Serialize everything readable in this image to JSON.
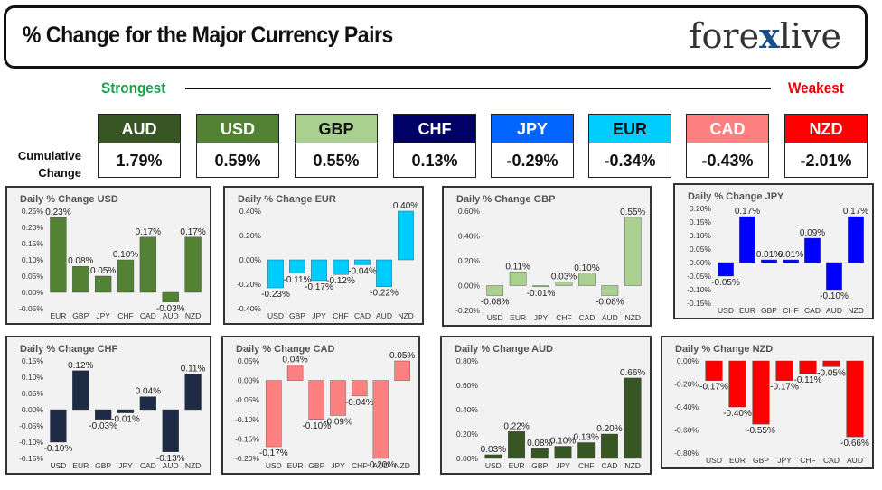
{
  "header": {
    "title": "% Change for the Major Currency Pairs",
    "logo_left": "fore",
    "logo_x": "x",
    "logo_right": "live",
    "strongest_label": "Strongest",
    "weakest_label": "Weakest"
  },
  "summary": {
    "row_label": "Cumulative Change",
    "currencies": [
      {
        "code": "AUD",
        "value": "1.79%",
        "bg": "#375623",
        "fg": "#ffffff"
      },
      {
        "code": "USD",
        "value": "0.59%",
        "bg": "#548235",
        "fg": "#ffffff"
      },
      {
        "code": "GBP",
        "value": "0.55%",
        "bg": "#a9d08e",
        "fg": "#111111"
      },
      {
        "code": "CHF",
        "value": "0.13%",
        "bg": "#000066",
        "fg": "#ffffff"
      },
      {
        "code": "JPY",
        "value": "-0.29%",
        "bg": "#0066ff",
        "fg": "#ffffff"
      },
      {
        "code": "EUR",
        "value": "-0.34%",
        "bg": "#00ccff",
        "fg": "#111111"
      },
      {
        "code": "CAD",
        "value": "-0.43%",
        "bg": "#ff8080",
        "fg": "#ffffff"
      },
      {
        "code": "NZD",
        "value": "-2.01%",
        "bg": "#ff0000",
        "fg": "#ffffff"
      }
    ]
  },
  "chart_data": [
    {
      "type": "bar",
      "title": "Daily % Change USD",
      "categories": [
        "EUR",
        "GBP",
        "JPY",
        "CHF",
        "CAD",
        "AUD",
        "NZD"
      ],
      "values": [
        0.23,
        0.08,
        0.05,
        0.1,
        0.17,
        -0.03,
        0.17
      ],
      "labels": [
        "0.23%",
        "0.08%",
        "0.05%",
        "0.10%",
        "0.17%",
        "-0.03%",
        "0.17%"
      ],
      "ylim": [
        -0.05,
        0.25
      ],
      "ticks": [
        0.25,
        0.2,
        0.15,
        0.1,
        0.05,
        0.0,
        -0.05
      ],
      "tick_labels": [
        "0.25%",
        "0.20%",
        "0.15%",
        "0.10%",
        "0.05%",
        "0.00%",
        "-0.05%"
      ],
      "color": "#548235"
    },
    {
      "type": "bar",
      "title": "Daily % Change EUR",
      "categories": [
        "USD",
        "GBP",
        "JPY",
        "CHF",
        "CAD",
        "AUD",
        "NZD"
      ],
      "values": [
        -0.23,
        -0.11,
        -0.17,
        -0.12,
        -0.04,
        -0.22,
        0.4
      ],
      "labels": [
        "-0.23%",
        "-0.11%",
        "-0.17%",
        "-0.12%",
        "-0.04%",
        "-0.22%",
        "0.40%"
      ],
      "ylim": [
        -0.4,
        0.4
      ],
      "ticks": [
        0.4,
        0.2,
        0.0,
        -0.2,
        -0.4
      ],
      "tick_labels": [
        "0.40%",
        "0.20%",
        "0.00%",
        "-0.20%",
        "-0.40%"
      ],
      "color": "#00ccff"
    },
    {
      "type": "bar",
      "title": "Daily % Change GBP",
      "categories": [
        "USD",
        "EUR",
        "JPY",
        "CHF",
        "CAD",
        "AUD",
        "NZD"
      ],
      "values": [
        -0.08,
        0.11,
        -0.01,
        0.03,
        0.1,
        -0.08,
        0.55
      ],
      "labels": [
        "-0.08%",
        "0.11%",
        "-0.01%",
        "0.03%",
        "0.10%",
        "-0.08%",
        "0.55%"
      ],
      "ylim": [
        -0.2,
        0.6
      ],
      "ticks": [
        0.6,
        0.4,
        0.2,
        0.0,
        -0.2
      ],
      "tick_labels": [
        "0.60%",
        "0.40%",
        "0.20%",
        "0.00%",
        "-0.20%"
      ],
      "color": "#a9d08e"
    },
    {
      "type": "bar",
      "title": "Daily % Change JPY",
      "categories": [
        "USD",
        "EUR",
        "GBP",
        "CHF",
        "CAD",
        "AUD",
        "NZD"
      ],
      "values": [
        -0.05,
        0.17,
        0.01,
        0.01,
        0.09,
        -0.1,
        0.17
      ],
      "labels": [
        "-0.05%",
        "0.17%",
        "0.01%",
        "0.01%",
        "0.09%",
        "-0.10%",
        "0.17%"
      ],
      "ylim": [
        -0.15,
        0.2
      ],
      "ticks": [
        0.2,
        0.15,
        0.1,
        0.05,
        0.0,
        -0.05,
        -0.1,
        -0.15
      ],
      "tick_labels": [
        "0.20%",
        "0.15%",
        "0.10%",
        "0.05%",
        "0.00%",
        "-0.05%",
        "-0.10%",
        "-0.15%"
      ],
      "color": "#0000ff"
    },
    {
      "type": "bar",
      "title": "Daily % Change CHF",
      "categories": [
        "USD",
        "EUR",
        "GBP",
        "JPY",
        "CAD",
        "AUD",
        "NZD"
      ],
      "values": [
        -0.1,
        0.12,
        -0.03,
        -0.01,
        0.04,
        -0.13,
        0.11
      ],
      "labels": [
        "-0.10%",
        "0.12%",
        "-0.03%",
        "-0.01%",
        "0.04%",
        "-0.13%",
        "0.11%"
      ],
      "ylim": [
        -0.15,
        0.15
      ],
      "ticks": [
        0.15,
        0.1,
        0.05,
        0.0,
        -0.05,
        -0.1,
        -0.15
      ],
      "tick_labels": [
        "0.15%",
        "0.10%",
        "0.05%",
        "0.00%",
        "-0.05%",
        "-0.10%",
        "-0.15%"
      ],
      "color": "#1f2a44"
    },
    {
      "type": "bar",
      "title": "Daily % Change CAD",
      "categories": [
        "USD",
        "EUR",
        "GBP",
        "JPY",
        "CHF",
        "AUD",
        "NZD"
      ],
      "values": [
        -0.17,
        0.04,
        -0.1,
        -0.09,
        -0.04,
        -0.2,
        0.05
      ],
      "labels": [
        "-0.17%",
        "0.04%",
        "-0.10%",
        "-0.09%",
        "-0.04%",
        "-0.20%",
        "0.05%"
      ],
      "ylim": [
        -0.2,
        0.05
      ],
      "ticks": [
        0.05,
        0.0,
        -0.05,
        -0.1,
        -0.15,
        -0.2
      ],
      "tick_labels": [
        "0.05%",
        "0.00%",
        "-0.05%",
        "-0.10%",
        "-0.15%",
        "-0.20%"
      ],
      "color": "#ff8080"
    },
    {
      "type": "bar",
      "title": "Daily % Change AUD",
      "categories": [
        "USD",
        "EUR",
        "GBP",
        "JPY",
        "CHF",
        "CAD",
        "NZD"
      ],
      "values": [
        0.03,
        0.22,
        0.08,
        0.1,
        0.13,
        0.2,
        0.66
      ],
      "labels": [
        "0.03%",
        "0.22%",
        "0.08%",
        "0.10%",
        "0.13%",
        "0.20%",
        "0.66%"
      ],
      "ylim": [
        0.0,
        0.8
      ],
      "ticks": [
        0.8,
        0.6,
        0.4,
        0.2,
        0.0
      ],
      "tick_labels": [
        "0.80%",
        "0.60%",
        "0.40%",
        "0.20%",
        "0.00%"
      ],
      "color": "#375623"
    },
    {
      "type": "bar",
      "title": "Daily % Change NZD",
      "categories": [
        "USD",
        "EUR",
        "GBP",
        "JPY",
        "CHF",
        "CAD",
        "AUD"
      ],
      "values": [
        -0.17,
        -0.4,
        -0.55,
        -0.17,
        -0.11,
        -0.05,
        -0.66
      ],
      "labels": [
        "-0.17%",
        "-0.40%",
        "-0.55%",
        "-0.17%",
        "-0.11%",
        "-0.05%",
        "-0.66%"
      ],
      "ylim": [
        -0.8,
        0.0
      ],
      "ticks": [
        0.0,
        -0.2,
        -0.4,
        -0.6,
        -0.8
      ],
      "tick_labels": [
        "0.00%",
        "-0.20%",
        "-0.40%",
        "-0.60%",
        "-0.80%"
      ],
      "color": "#ff0000"
    }
  ]
}
